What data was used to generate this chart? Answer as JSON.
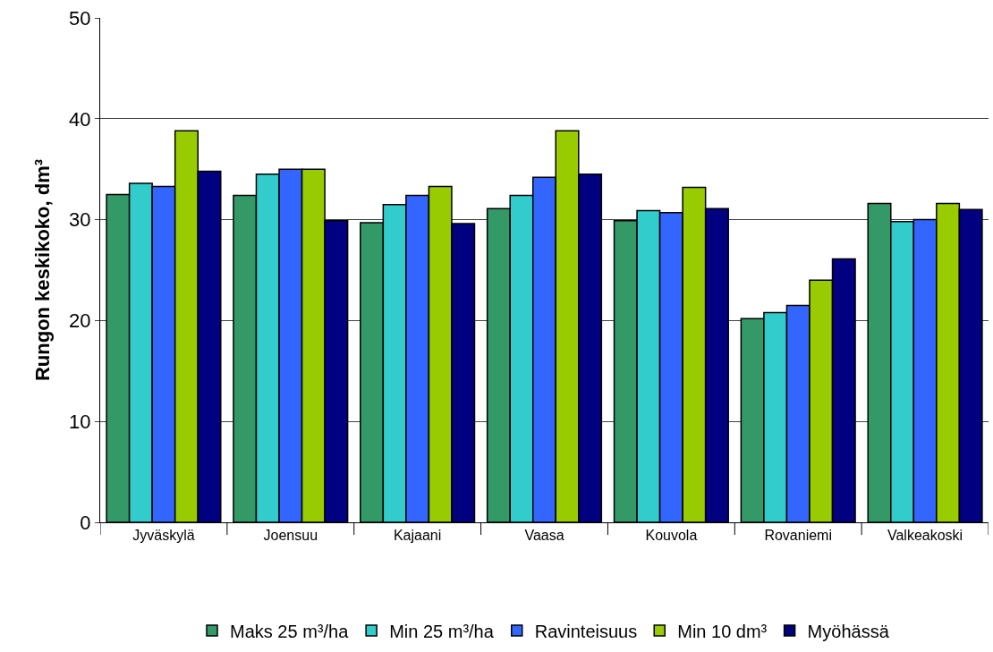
{
  "chart_data": {
    "type": "bar",
    "ylabel": "Rungon keskikoko, dm³",
    "categories": [
      "Jyväskylä",
      "Joensuu",
      "Kajaani",
      "Vaasa",
      "Kouvola",
      "Rovaniemi",
      "Valkeakoski"
    ],
    "series": [
      {
        "name": "Maks 25 m³/ha",
        "color": "#339966",
        "values": [
          32.5,
          32.4,
          29.7,
          31.1,
          29.9,
          20.2,
          31.6
        ]
      },
      {
        "name": "Min 25 m³/ha",
        "color": "#33cccc",
        "values": [
          33.6,
          34.5,
          31.5,
          32.4,
          30.9,
          20.8,
          29.8
        ]
      },
      {
        "name": "Ravinteisuus",
        "color": "#3366ff",
        "values": [
          33.3,
          35.0,
          32.4,
          34.2,
          30.7,
          21.5,
          30.0
        ]
      },
      {
        "name": "Min 10 dm³",
        "color": "#99cc00",
        "values": [
          38.8,
          35.0,
          33.3,
          38.8,
          33.2,
          24.0,
          31.6
        ]
      },
      {
        "name": "Myöhässä",
        "color": "#000080",
        "values": [
          34.8,
          29.9,
          29.6,
          34.5,
          31.1,
          26.1,
          31.0
        ]
      }
    ],
    "ylim": [
      0,
      50
    ],
    "yticks": [
      0,
      10,
      20,
      30,
      40,
      50
    ],
    "grid": "y",
    "legend": "bottom"
  }
}
